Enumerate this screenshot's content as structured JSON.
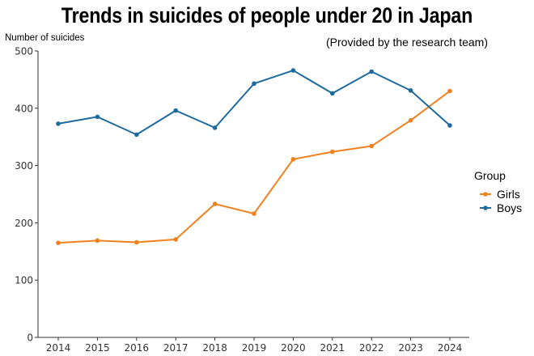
{
  "chart_data": {
    "type": "line",
    "title": "Trends in suicides of people under 20 in Japan",
    "subtitle": "(Provided by the research team)",
    "ylabel": "Number of suicides",
    "xlabel": "",
    "x": [
      2014,
      2015,
      2016,
      2017,
      2018,
      2019,
      2020,
      2021,
      2022,
      2023,
      2024
    ],
    "ylim": [
      0,
      500
    ],
    "yticks": [
      0,
      100,
      200,
      300,
      400,
      500
    ],
    "grid": false,
    "legend": {
      "title": "Group",
      "position": "right"
    },
    "series": [
      {
        "name": "Girls",
        "color": "#f0811f",
        "values": [
          165,
          169,
          166,
          171,
          233,
          216,
          311,
          324,
          334,
          379,
          430
        ]
      },
      {
        "name": "Boys",
        "color": "#1d6a9e",
        "values": [
          373,
          385,
          354,
          396,
          366,
          443,
          466,
          426,
          464,
          431,
          370
        ]
      }
    ]
  }
}
